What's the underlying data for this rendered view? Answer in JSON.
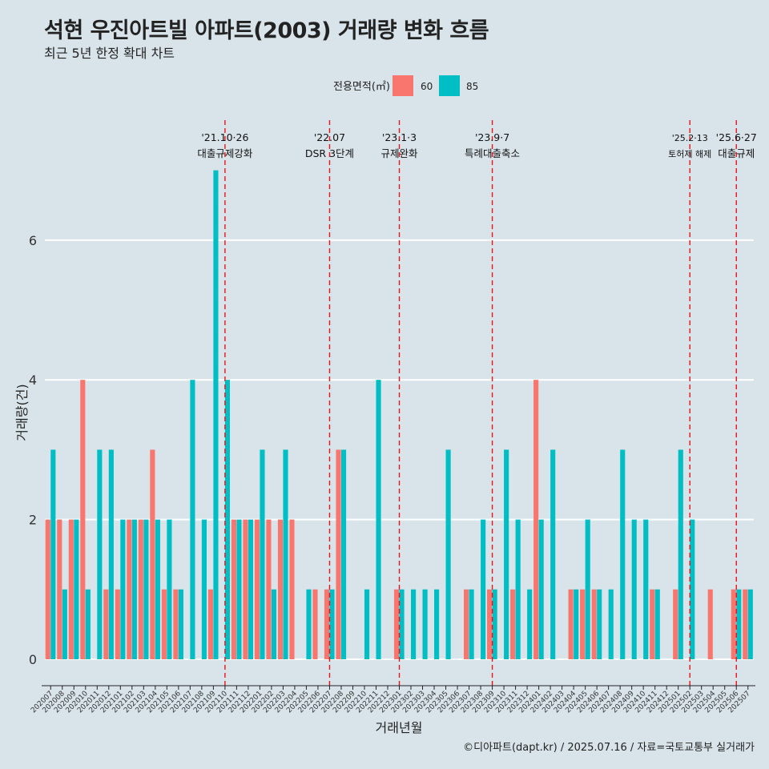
{
  "header": {
    "title": "석현 우진아트빌 아파트(2003) 거래량 변화 흐름",
    "subtitle": "최근 5년 한정 확대 차트"
  },
  "caption": "©디아파트(dapt.kr) / 2025.07.16 / 자료=국토교통부 실거래가",
  "legend": {
    "title": "전용면적(㎡)",
    "items": [
      {
        "label": "60",
        "color": "#F8766D"
      },
      {
        "label": "85",
        "color": "#00BFC4"
      }
    ]
  },
  "colors": {
    "s60": "#F8766D",
    "s85": "#00BFC4",
    "event_line": "#e8141b",
    "grid": "#ffffff"
  },
  "chart_data": {
    "type": "bar",
    "title": "석현 우진아트빌 아파트(2003) 거래량 변화 흐름",
    "xlabel": "거래년월",
    "ylabel": "거래량(건)",
    "ylim": [
      0,
      7
    ],
    "yticks": [
      0,
      2,
      4,
      6
    ],
    "categories": [
      "202007",
      "202008",
      "202009",
      "202010",
      "202011",
      "202012",
      "202101",
      "202102",
      "202103",
      "202104",
      "202105",
      "202106",
      "202107",
      "202108",
      "202109",
      "202110",
      "202111",
      "202112",
      "202201",
      "202202",
      "202203",
      "202204",
      "202205",
      "202206",
      "202207",
      "202208",
      "202209",
      "202210",
      "202211",
      "202212",
      "202301",
      "202302",
      "202303",
      "202304",
      "202305",
      "202306",
      "202307",
      "202308",
      "202309",
      "202310",
      "202311",
      "202312",
      "202401",
      "202402",
      "202403",
      "202404",
      "202405",
      "202406",
      "202407",
      "202408",
      "202409",
      "202410",
      "202411",
      "202412",
      "202501",
      "202502",
      "202503",
      "202504",
      "202505",
      "202506",
      "202507"
    ],
    "series": [
      {
        "name": "60",
        "values": [
          2,
          2,
          2,
          4,
          0,
          1,
          1,
          2,
          2,
          3,
          1,
          1,
          0,
          0,
          1,
          0,
          2,
          2,
          2,
          2,
          2,
          2,
          0,
          1,
          1,
          3,
          0,
          0,
          0,
          0,
          1,
          0,
          0,
          0,
          0,
          0,
          1,
          0,
          1,
          0,
          1,
          0,
          4,
          0,
          0,
          1,
          1,
          1,
          0,
          0,
          0,
          0,
          1,
          0,
          1,
          0,
          0,
          1,
          0,
          1,
          1
        ]
      },
      {
        "name": "85",
        "values": [
          3,
          1,
          2,
          1,
          3,
          3,
          2,
          2,
          2,
          2,
          2,
          1,
          4,
          2,
          7,
          4,
          2,
          2,
          3,
          1,
          3,
          0,
          1,
          0,
          1,
          3,
          0,
          1,
          4,
          0,
          1,
          1,
          1,
          1,
          3,
          0,
          1,
          2,
          1,
          3,
          2,
          1,
          2,
          3,
          0,
          1,
          2,
          1,
          1,
          3,
          2,
          2,
          1,
          0,
          3,
          2,
          0,
          0,
          0,
          1,
          1
        ]
      }
    ],
    "events": [
      {
        "category": "202110",
        "date": "'21.10·26",
        "label": "대출규제강화"
      },
      {
        "category": "202207",
        "date": "'22.07",
        "label": "DSR 3단계"
      },
      {
        "category": "202301",
        "date": "'23.1·3",
        "label": "규제완화"
      },
      {
        "category": "202309",
        "date": "'23.9·7",
        "label": "특례대출축소"
      },
      {
        "category": "202502",
        "date": "'25.2·13",
        "label": "토허제 해제"
      },
      {
        "category": "202506",
        "date": "'25.6·27",
        "label": "대출규제"
      }
    ]
  }
}
